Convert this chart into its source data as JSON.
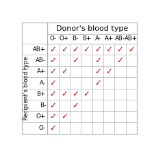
{
  "donors": [
    "O-",
    "O+",
    "B-",
    "B+",
    "A-",
    "A+",
    "AB-",
    "AB+"
  ],
  "recipients": [
    "AB+",
    "AB-",
    "A+",
    "A-",
    "B+",
    "B-",
    "O+",
    "O-"
  ],
  "checks": [
    [
      1,
      1,
      1,
      1,
      1,
      1,
      1,
      1
    ],
    [
      1,
      0,
      1,
      0,
      1,
      0,
      1,
      0
    ],
    [
      1,
      1,
      0,
      0,
      1,
      1,
      0,
      0
    ],
    [
      1,
      0,
      0,
      0,
      1,
      0,
      0,
      0
    ],
    [
      1,
      1,
      1,
      1,
      0,
      0,
      0,
      0
    ],
    [
      1,
      0,
      1,
      0,
      0,
      0,
      0,
      0
    ],
    [
      1,
      1,
      0,
      0,
      0,
      0,
      0,
      0
    ],
    [
      1,
      0,
      0,
      0,
      0,
      0,
      0,
      0
    ]
  ],
  "check_color": "#cc0000",
  "donor_label": "Donor's blood type",
  "recipient_label": "Recipient's blood type",
  "grid_color": "#b0b0b0",
  "bg_color": "#ffffff",
  "check_char": "✓"
}
